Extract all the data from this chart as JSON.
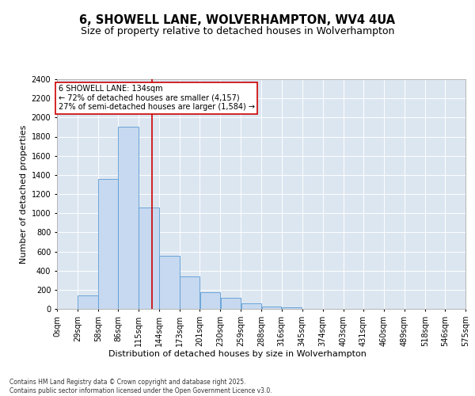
{
  "title": "6, SHOWELL LANE, WOLVERHAMPTON, WV4 4UA",
  "subtitle": "Size of property relative to detached houses in Wolverhampton",
  "xlabel": "Distribution of detached houses by size in Wolverhampton",
  "ylabel": "Number of detached properties",
  "bar_color": "#c6d9f0",
  "bar_edge_color": "#5b9bd5",
  "background_color": "#dce6f1",
  "annotation_text": "6 SHOWELL LANE: 134sqm\n← 72% of detached houses are smaller (4,157)\n27% of semi-detached houses are larger (1,584) →",
  "vline_x": 134,
  "vline_color": "#cc0000",
  "bin_edges": [
    0,
    29,
    58,
    86,
    115,
    144,
    173,
    201,
    230,
    259,
    288,
    316,
    345,
    374,
    403,
    431,
    460,
    489,
    518,
    546,
    575
  ],
  "bar_heights": [
    0,
    140,
    1360,
    1900,
    1060,
    555,
    340,
    170,
    115,
    60,
    25,
    15,
    0,
    0,
    0,
    0,
    0,
    0,
    0,
    0
  ],
  "ylim": [
    0,
    2400
  ],
  "yticks": [
    0,
    200,
    400,
    600,
    800,
    1000,
    1200,
    1400,
    1600,
    1800,
    2000,
    2200,
    2400
  ],
  "xtick_labels": [
    "0sqm",
    "29sqm",
    "58sqm",
    "86sqm",
    "115sqm",
    "144sqm",
    "173sqm",
    "201sqm",
    "230sqm",
    "259sqm",
    "288sqm",
    "316sqm",
    "345sqm",
    "374sqm",
    "403sqm",
    "431sqm",
    "460sqm",
    "489sqm",
    "518sqm",
    "546sqm",
    "575sqm"
  ],
  "footnote": "Contains HM Land Registry data © Crown copyright and database right 2025.\nContains public sector information licensed under the Open Government Licence v3.0.",
  "title_fontsize": 10.5,
  "subtitle_fontsize": 9,
  "axis_label_fontsize": 8,
  "tick_fontsize": 7,
  "annotation_fontsize": 7,
  "footnote_fontsize": 5.5
}
